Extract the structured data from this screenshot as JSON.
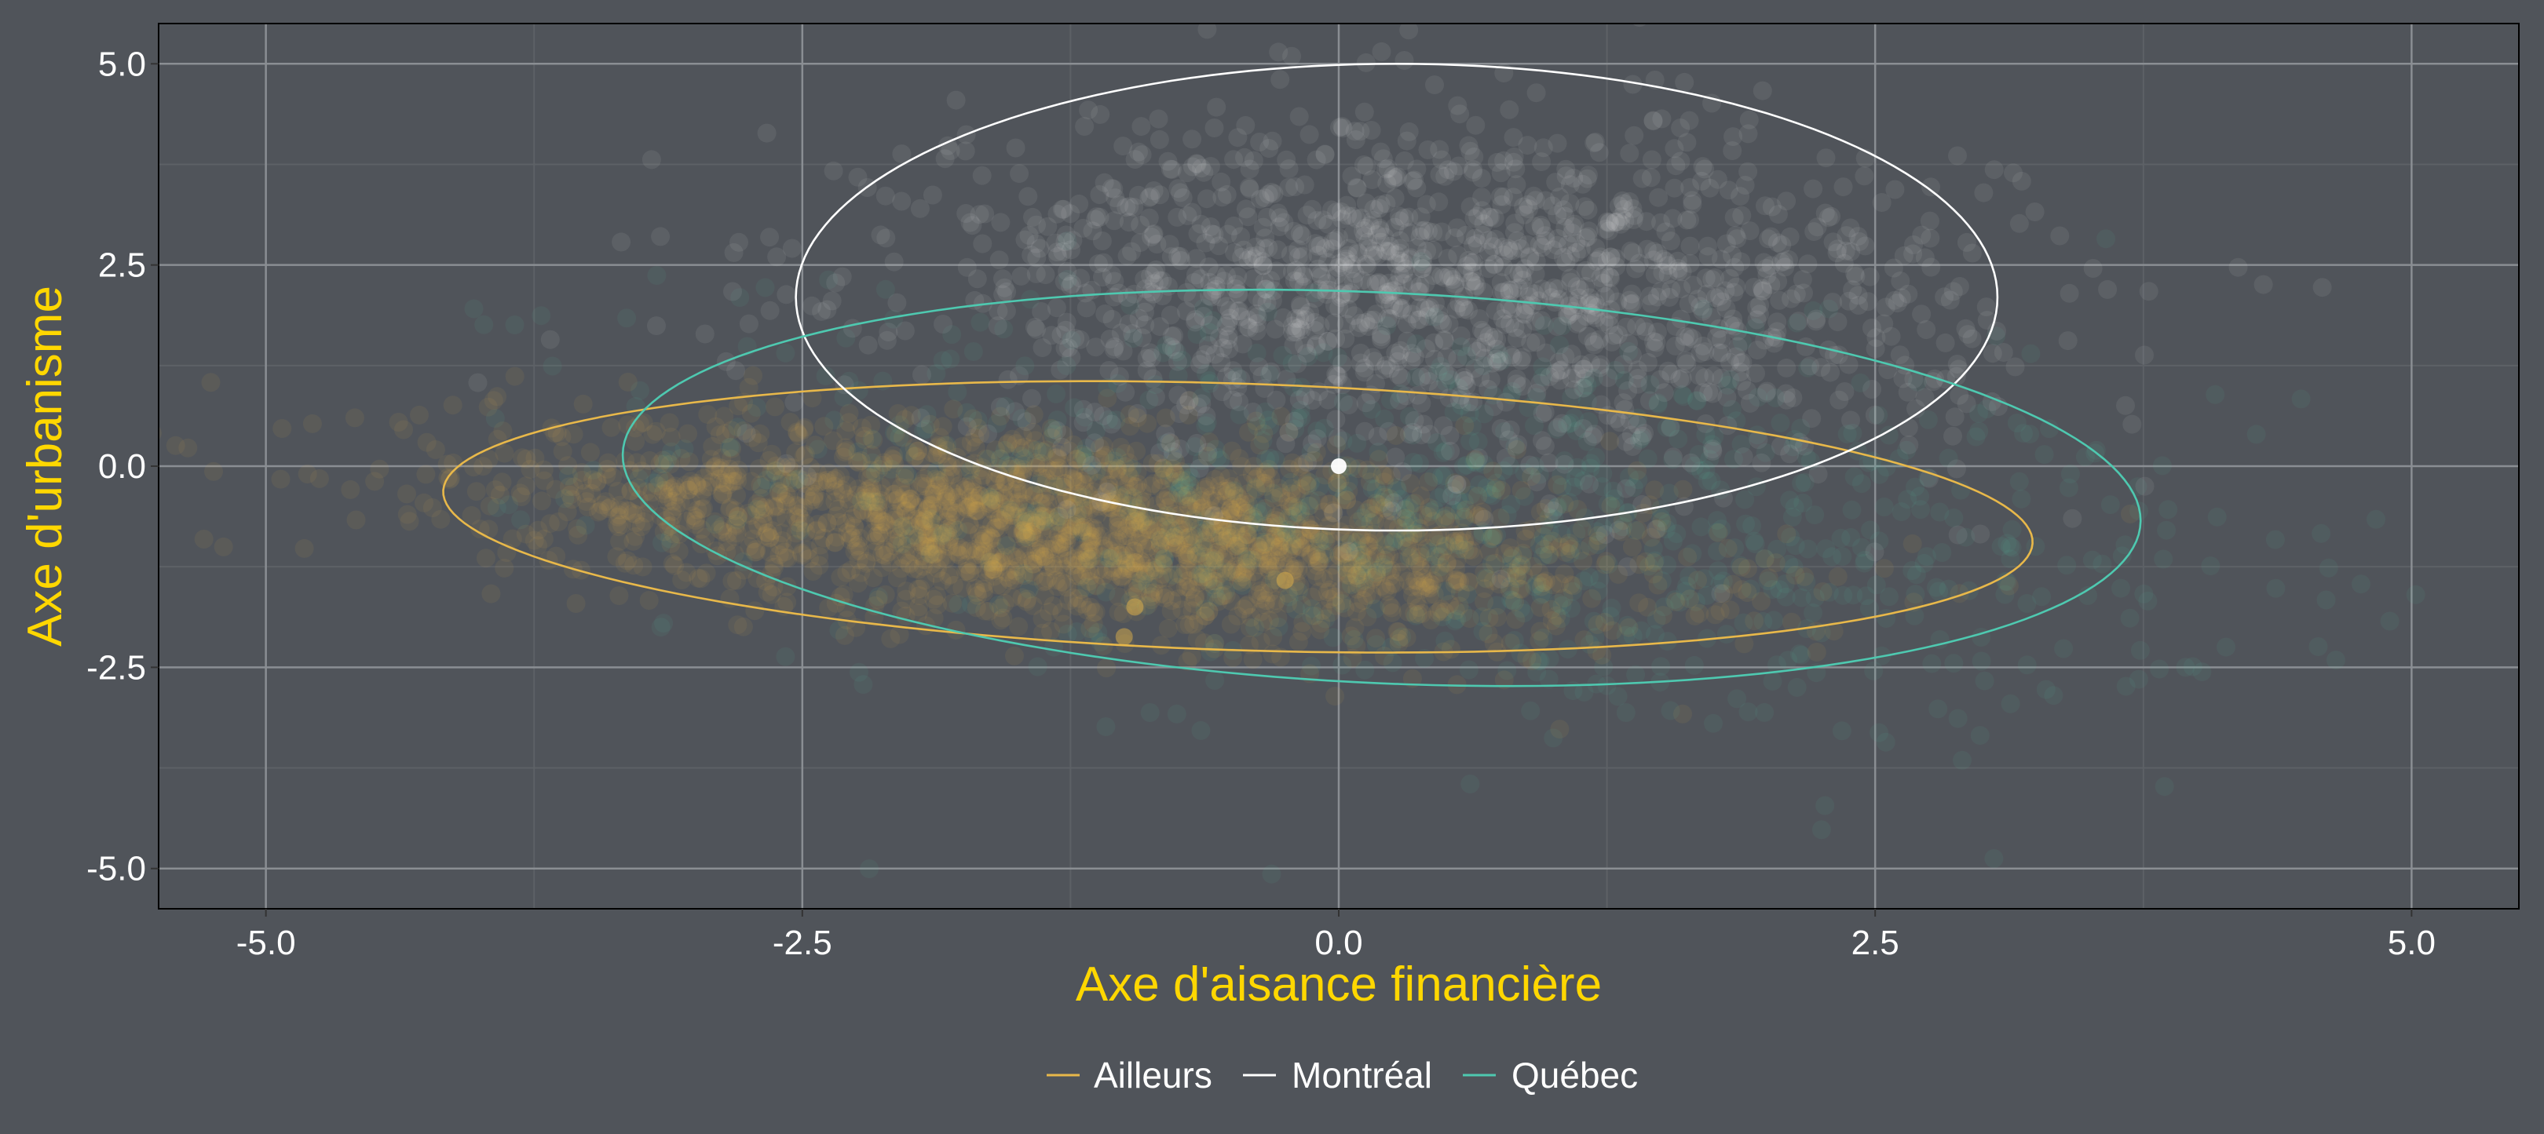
{
  "chart_data": {
    "type": "scatter",
    "xlabel": "Axe d'aisance financière",
    "ylabel": "Axe d'urbanisme",
    "xlim": [
      -5.5,
      5.5
    ],
    "ylim": [
      -5.5,
      5.5
    ],
    "x_ticks": [
      -5.0,
      -2.5,
      0.0,
      2.5,
      5.0
    ],
    "y_ticks": [
      -5.0,
      -2.5,
      0.0,
      2.5,
      5.0
    ],
    "x_tick_labels": [
      "-5.0",
      "-2.5",
      "0.0",
      "2.5",
      "5.0"
    ],
    "y_tick_labels": [
      "-5.0",
      "-2.5",
      "0.0",
      "2.5",
      "5.0"
    ],
    "grid": true,
    "legend_position": "bottom",
    "colors": {
      "background": "#50545a",
      "grid_major": "#8a8e93",
      "grid_minor": "#5d6166",
      "axis_title": "#ffd700",
      "tick_label": "#ffffff"
    },
    "series": [
      {
        "name": "Ailleurs",
        "color": "#e8b84a",
        "cloud": {
          "center": [
            -1.2,
            -0.8
          ],
          "sd": [
            1.35,
            0.65
          ],
          "rho": -0.45
        },
        "ellipse": {
          "center": [
            -0.47,
            -0.63
          ],
          "semi_axes": [
            3.72,
            1.65
          ],
          "angle_deg": -6
        }
      },
      {
        "name": "Montréal",
        "color": "#ffffff",
        "cloud": {
          "center": [
            0.5,
            2.2
          ],
          "sd": [
            1.25,
            1.05
          ],
          "rho": -0.1
        },
        "ellipse": {
          "center": [
            0.27,
            2.1
          ],
          "semi_axes": [
            2.8,
            2.9
          ],
          "angle_deg": 0
        }
      },
      {
        "name": "Québec",
        "color": "#4ec9b0",
        "cloud": {
          "center": [
            0.6,
            -0.6
          ],
          "sd": [
            1.8,
            1.3
          ],
          "rho": -0.35
        },
        "ellipse": {
          "center": [
            0.2,
            -0.27
          ],
          "semi_axes": [
            3.58,
            2.4
          ],
          "angle_deg": -12
        }
      }
    ],
    "points": [
      {
        "x": 0.0,
        "y": 0.0,
        "series": "Montréal"
      },
      {
        "x": -0.25,
        "y": -1.42,
        "series": "Ailleurs"
      },
      {
        "x": -0.95,
        "y": -1.75,
        "series": "Ailleurs"
      },
      {
        "x": -1.0,
        "y": -2.12,
        "series": "Ailleurs"
      }
    ]
  }
}
